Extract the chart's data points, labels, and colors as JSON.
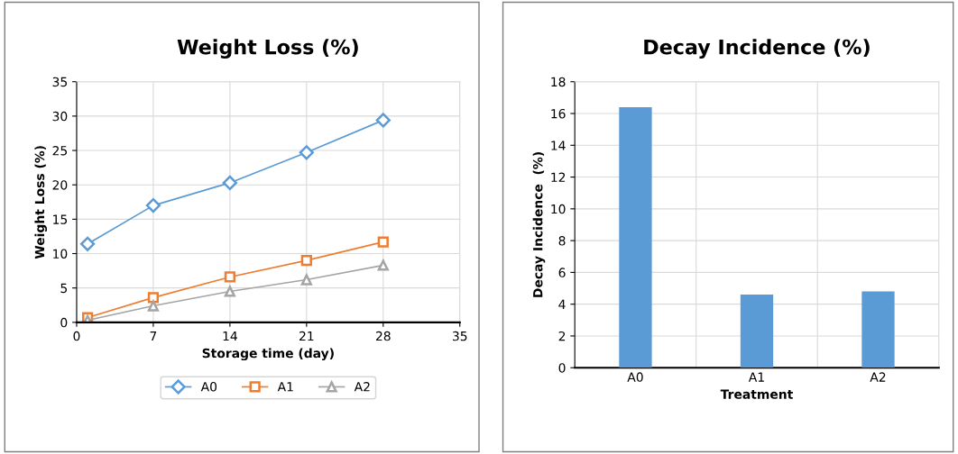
{
  "chart_data": [
    {
      "type": "line",
      "title": "Weight Loss (%)",
      "xlabel": "Storage time (day)",
      "ylabel": "Weight Loss (%)",
      "xlim": [
        0,
        35
      ],
      "xticks": [
        0,
        7,
        14,
        21,
        28,
        35
      ],
      "ylim": [
        0,
        35
      ],
      "yticks": [
        0,
        5,
        10,
        15,
        20,
        25,
        30,
        35
      ],
      "grid": true,
      "legend": "bottom",
      "line_style": "solid",
      "series": [
        {
          "name": "A0",
          "color": "#5b9bd5",
          "marker": "diamond",
          "x": [
            1,
            7,
            14,
            21,
            28
          ],
          "values": [
            11.4,
            17.0,
            20.3,
            24.7,
            29.4
          ]
        },
        {
          "name": "A1",
          "color": "#ed7d31",
          "marker": "square",
          "x": [
            1,
            7,
            14,
            21,
            28
          ],
          "values": [
            0.7,
            3.6,
            6.6,
            9.0,
            11.7
          ]
        },
        {
          "name": "A2",
          "color": "#a5a5a5",
          "marker": "triangle",
          "x": [
            1,
            7,
            14,
            21,
            28
          ],
          "values": [
            0.3,
            2.4,
            4.5,
            6.2,
            8.3
          ]
        }
      ]
    },
    {
      "type": "bar",
      "title": "Decay Incidence (%)",
      "xlabel": "Treatment",
      "ylabel": "Decay Incidence  (%)",
      "categories": [
        "A0",
        "A1",
        "A2"
      ],
      "values": [
        16.4,
        4.6,
        4.8
      ],
      "color": "#5b9bd5",
      "ylim": [
        0,
        18
      ],
      "yticks": [
        0,
        2,
        4,
        6,
        8,
        10,
        12,
        14,
        16,
        18
      ],
      "grid": true,
      "legend": false
    }
  ]
}
